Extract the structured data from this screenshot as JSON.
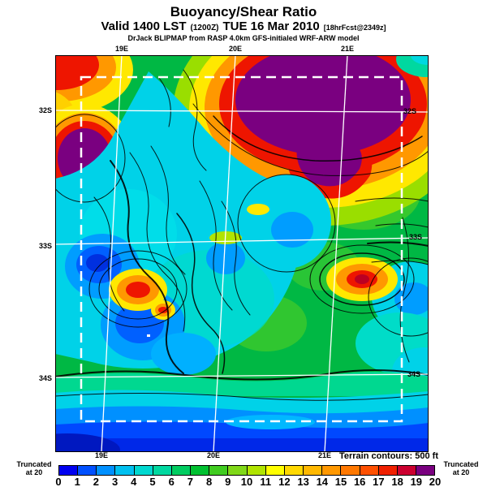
{
  "title": "Buoyancy/Shear Ratio",
  "subtitle": {
    "valid": "Valid 1400 LST",
    "init_time": "(1200Z)",
    "date": "TUE 16 Mar 2010",
    "forecast": "[18hrFcst@2349z]"
  },
  "model_credit": "DrJack BLIPMAP from RASP 4.0km GFS-initialed WRF-ARW model",
  "map": {
    "lon_labels": [
      "19E",
      "20E",
      "21E"
    ],
    "lat_labels": [
      "32S",
      "33S",
      "34S"
    ],
    "terrain_note": "Terrain contours: 500 ft"
  },
  "colorbar": {
    "ticks": [
      "0",
      "1",
      "2",
      "3",
      "4",
      "5",
      "6",
      "7",
      "8",
      "9",
      "10",
      "11",
      "12",
      "13",
      "14",
      "15",
      "16",
      "17",
      "18",
      "19",
      "20"
    ],
    "colors": [
      "#0000f0",
      "#0050ff",
      "#0090ff",
      "#00c0f0",
      "#00d8d0",
      "#00d8a0",
      "#00cc60",
      "#00c030",
      "#40cc20",
      "#80d818",
      "#b0e400",
      "#ffff00",
      "#ffd800",
      "#ffb800",
      "#ff9800",
      "#ff7800",
      "#ff5000",
      "#f02000",
      "#cc0030",
      "#7a0080"
    ],
    "left_note_line1": "Truncated",
    "left_note_line2": "at 20",
    "right_note_line1": "Truncated",
    "right_note_line2": "at 20"
  },
  "chart_data": {
    "type": "heatmap",
    "title": "Buoyancy/Shear Ratio",
    "valid": "1400 LST (1200Z) TUE 16 Mar 2010",
    "forecast": "18hrFcst@2349z",
    "model": "RASP 4.0km GFS-initialed WRF-ARW",
    "x_tick_labels": [
      "19E",
      "20E",
      "21E"
    ],
    "y_tick_labels": [
      "32S",
      "33S",
      "34S"
    ],
    "colorbar_range": [
      0,
      20
    ],
    "colorbar_ticks": [
      0,
      1,
      2,
      3,
      4,
      5,
      6,
      7,
      8,
      9,
      10,
      11,
      12,
      13,
      14,
      15,
      16,
      17,
      18,
      19,
      20
    ],
    "truncated_at": 20,
    "overlay": "Terrain contours: 500 ft",
    "features": [
      "high ratio >20 (purple/red) zone across top-center and top-right",
      "small high-ratio cell at top-left corner and left edge",
      "broad low-ratio cyan/blue zone over left-center with terrain contours",
      "isolated red hot spots near map center-left and center-right",
      "low ratio 0-3 blue band along entire bottom edge",
      "white dashed inner model domain rectangle",
      "white lat/lon grid lines at 19E,20E,21E and 32S,33S,34S"
    ]
  }
}
